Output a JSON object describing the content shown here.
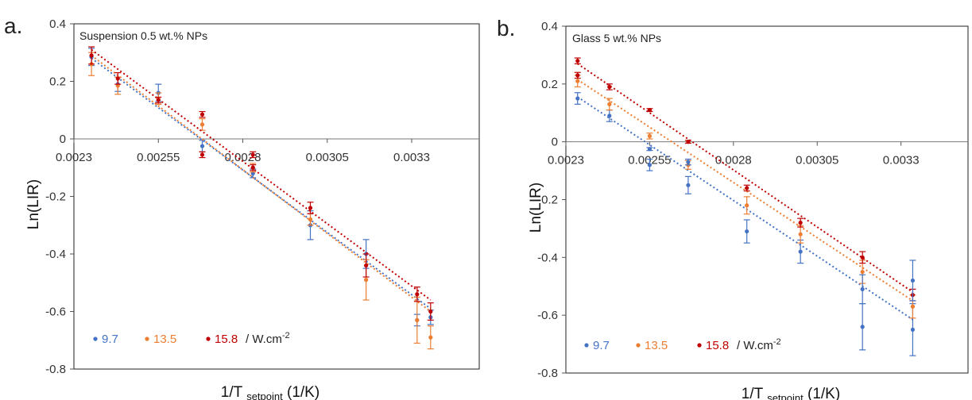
{
  "chart_data": [
    {
      "type": "scatter",
      "panel_label": "a.",
      "title": "Suspension 0.5 wt.% NPs",
      "xlabel": "1/T",
      "xlabel_sub": "setpoint",
      "xlabel_unit": "(1/K)",
      "ylabel": "Ln(LIR)",
      "xlim": [
        0.0023,
        0.0035
      ],
      "ylim": [
        -0.8,
        0.4
      ],
      "xticks": [
        0.0023,
        0.00255,
        0.0028,
        0.00305,
        0.0033
      ],
      "xtick_labels": [
        "0.0023",
        "0.00255",
        "0.0028",
        "0.00305",
        "0.0033"
      ],
      "yticks": [
        0.4,
        0.2,
        0,
        -0.2,
        -0.4,
        -0.6,
        -0.8
      ],
      "ytick_labels": [
        "0.4",
        "0.2",
        "0",
        "-0.2",
        "-0.4",
        "-0.6",
        "-0.8"
      ],
      "grid": false,
      "legend_placement": "bottom-left",
      "legend_unit": "/ W.cm",
      "legend_unit_sup": "-2",
      "series": [
        {
          "name": "9.7",
          "color": "#4472c4",
          "x": [
            0.002352,
            0.00243,
            0.00255,
            0.00268,
            0.00283,
            0.003,
            0.003165,
            0.003316,
            0.003356
          ],
          "y": [
            0.285,
            0.19,
            0.16,
            -0.025,
            -0.12,
            -0.3,
            -0.4,
            -0.63,
            -0.62
          ],
          "err": [
            0.03,
            0.025,
            0.03,
            0.02,
            0.015,
            0.05,
            0.05,
            0.02,
            0.025
          ],
          "fit": [
            0.28,
            -0.59
          ]
        },
        {
          "name": "13.5",
          "color": "#ed7d31",
          "x": [
            0.002352,
            0.00243,
            0.00255,
            0.00268,
            0.00283,
            0.003,
            0.003165,
            0.003316,
            0.003356
          ],
          "y": [
            0.26,
            0.185,
            0.14,
            0.05,
            -0.1,
            -0.28,
            -0.49,
            -0.63,
            -0.69
          ],
          "err": [
            0.04,
            0.03,
            0.02,
            0.02,
            0.015,
            0.02,
            0.07,
            0.08,
            0.04
          ],
          "fit": [
            0.29,
            -0.6
          ]
        },
        {
          "name": "15.8",
          "color": "#c00000",
          "x": [
            0.002352,
            0.00243,
            0.00255,
            0.00268,
            0.00283,
            0.003,
            0.003165,
            0.003316,
            0.003356
          ],
          "y": [
            0.29,
            0.21,
            0.135,
            0.085,
            -0.1,
            -0.24,
            -0.44,
            -0.54,
            -0.6
          ],
          "err": [
            0.03,
            0.02,
            0.01,
            0.01,
            0.01,
            0.02,
            0.04,
            0.025,
            0.03
          ],
          "fit": [
            0.31,
            -0.56
          ]
        }
      ],
      "extra_points": [
        {
          "series": "15.8",
          "x": 0.00268,
          "y": -0.055,
          "err": 0.01
        },
        {
          "series": "15.8",
          "x": 0.00283,
          "y": -0.055,
          "err": 0.01
        }
      ]
    },
    {
      "type": "scatter",
      "panel_label": "b.",
      "title": "Glass 5 wt.% NPs",
      "xlabel": "1/T",
      "xlabel_sub": "setpoint",
      "xlabel_unit": "(1/K)",
      "ylabel": "Ln(LIR)",
      "xlim": [
        0.0023,
        0.0035
      ],
      "ylim": [
        -0.8,
        0.4
      ],
      "xticks": [
        0.0023,
        0.00255,
        0.0028,
        0.00305,
        0.0033
      ],
      "xtick_labels": [
        "0.0023",
        "0.00255",
        "0.0028",
        "0.00305",
        "0.0033"
      ],
      "yticks": [
        0.4,
        0.2,
        0,
        -0.2,
        -0.4,
        -0.6,
        -0.8
      ],
      "ytick_labels": [
        "0.4",
        "0.2",
        "0",
        "-0.2",
        "-0.4",
        "-0.6",
        "-0.8"
      ],
      "grid": false,
      "legend_placement": "bottom-left",
      "legend_unit": "/ W.cm",
      "legend_unit_sup": "-2",
      "series": [
        {
          "name": "9.7",
          "color": "#4472c4",
          "x": [
            0.002335,
            0.00243,
            0.00255,
            0.002665,
            0.00284,
            0.003,
            0.003185,
            0.003335
          ],
          "y": [
            0.15,
            0.09,
            -0.08,
            -0.15,
            -0.31,
            -0.38,
            -0.64,
            -0.65
          ],
          "err": [
            0.02,
            0.02,
            0.02,
            0.03,
            0.04,
            0.04,
            0.08,
            0.09
          ],
          "fit": [
            0.155,
            -0.615
          ]
        },
        {
          "name": "13.5",
          "color": "#ed7d31",
          "x": [
            0.002335,
            0.00243,
            0.00255,
            0.002665,
            0.00284,
            0.003,
            0.003185,
            0.003335
          ],
          "y": [
            0.21,
            0.13,
            0.02,
            -0.08,
            -0.22,
            -0.32,
            -0.45,
            -0.57
          ],
          "err": [
            0.02,
            0.02,
            0.01,
            0.015,
            0.03,
            0.03,
            0.04,
            0.04
          ],
          "fit": [
            0.215,
            -0.55
          ]
        },
        {
          "name": "15.8",
          "color": "#c00000",
          "x": [
            0.002335,
            0.00243,
            0.00255,
            0.002665,
            0.00284,
            0.003,
            0.003185,
            0.003335
          ],
          "y": [
            0.28,
            0.19,
            0.11,
            0.0,
            -0.16,
            -0.28,
            -0.4,
            -0.53
          ],
          "err": [
            0.01,
            0.01,
            0.005,
            0.005,
            0.01,
            0.015,
            0.02,
            0.02
          ],
          "fit": [
            0.27,
            -0.52
          ]
        }
      ],
      "extra_points": [
        {
          "series": "15.8",
          "x": 0.002335,
          "y": 0.23,
          "err": 0.01
        },
        {
          "series": "9.7",
          "x": 0.002665,
          "y": -0.07,
          "err": 0.01
        },
        {
          "series": "9.7",
          "x": 0.00255,
          "y": -0.025,
          "err": 0.005
        },
        {
          "series": "9.7",
          "x": 0.003185,
          "y": -0.51,
          "err": 0.05
        },
        {
          "series": "9.7",
          "x": 0.003335,
          "y": -0.48,
          "err": 0.07
        }
      ]
    }
  ]
}
